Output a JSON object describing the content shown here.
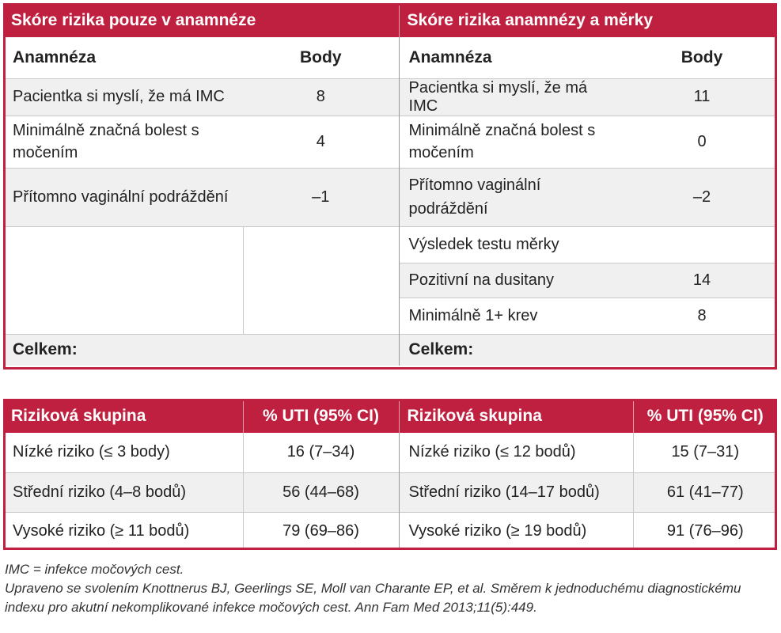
{
  "top_table": {
    "left_title": "Skóre rizika pouze v anamnéze",
    "right_title": "Skóre rizika anamnézy a měrky",
    "col_label": "Anamnéza",
    "col_points": "Body",
    "left_rows": [
      {
        "label": "Pacientka si myslí, že má IMC",
        "value": "8"
      },
      {
        "label": "Minimálně značná bolest s močením",
        "value": "4"
      },
      {
        "label": "Přítomno vaginální podráždění",
        "value": "–1"
      }
    ],
    "right_rows": [
      {
        "label": "Pacientka si myslí, že má IMC",
        "value": "11"
      },
      {
        "label": "Minimálně značná bolest s močením",
        "value": "0"
      },
      {
        "label": "Přítomno vaginální podráždění",
        "value": "–2"
      }
    ],
    "dipstick_heading": "Výsledek testu měrky",
    "dipstick_rows": [
      {
        "label": "Pozitivní na dusitany",
        "value": "14"
      },
      {
        "label": "Minimálně 1+ krev",
        "value": "8"
      }
    ],
    "total_label": "Celkem:"
  },
  "bottom_table": {
    "col_group": "Riziková skupina",
    "col_uti": "% UTI (95% CI)",
    "left_rows": [
      {
        "label": "Nízké riziko (≤ 3 body)",
        "value": "16 (7–34)"
      },
      {
        "label": "Střední riziko (4–8 bodů)",
        "value": "56 (44–68)"
      },
      {
        "label": "Vysoké riziko (≥ 11 bodů)",
        "value": "79 (69–86)"
      }
    ],
    "right_rows": [
      {
        "label": "Nízké riziko (≤ 12 bodů)",
        "value": "15 (7–31)"
      },
      {
        "label": "Střední riziko (14–17 bodů)",
        "value": "61 (41–77)"
      },
      {
        "label": "Vysoké riziko (≥ 19 bodů)",
        "value": "91 (76–96)"
      }
    ]
  },
  "notes": {
    "abbrev": "IMC = infekce močových cest.",
    "source_line1": "Upraveno se svolením Knottnerus BJ, Geerlings SE, Moll van Charante EP, et al. Směrem k jednoduchému diagnostickému",
    "source_line2": "indexu pro akutní nekomplikované infekce močových cest. Ann Fam Med 2013;11(5):449."
  }
}
